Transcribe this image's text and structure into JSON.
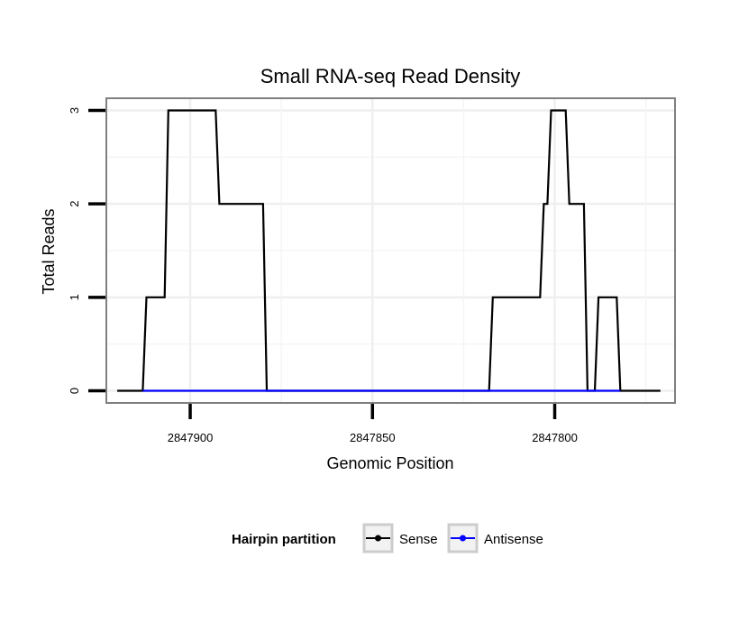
{
  "chart_data": {
    "type": "line",
    "title": "Small RNA-seq Read Density",
    "xlabel": "Genomic Position",
    "ylabel": "Total Reads",
    "xlim": [
      2847923,
      2847767
    ],
    "ylim": [
      -0.13,
      3.13
    ],
    "x_reversed": true,
    "grid": true,
    "xticks": [
      2847900,
      2847850,
      2847800
    ],
    "xtick_labels": [
      "2847900",
      "2847850",
      "2847800"
    ],
    "yticks": [
      0,
      1,
      2,
      3
    ],
    "ytick_labels": [
      "0",
      "1",
      "2",
      "3"
    ],
    "legend": {
      "title": "Hairpin partition",
      "position": "bottom",
      "entries": [
        "Sense",
        "Antisense"
      ]
    },
    "series": [
      {
        "name": "Sense",
        "color": "#000000",
        "x": [
          2847920,
          2847913,
          2847912,
          2847907,
          2847906,
          2847893,
          2847892,
          2847880,
          2847879,
          2847872,
          2847818,
          2847817,
          2847804,
          2847803,
          2847802,
          2847801,
          2847797,
          2847796,
          2847792,
          2847791,
          2847789,
          2847788,
          2847783,
          2847782,
          2847778,
          2847777,
          2847771
        ],
        "y": [
          0,
          0,
          1,
          1,
          3,
          3,
          2,
          2,
          0,
          0,
          0,
          1,
          1,
          2,
          2,
          3,
          3,
          2,
          2,
          0,
          0,
          1,
          1,
          0,
          0,
          0,
          0
        ]
      },
      {
        "name": "Antisense",
        "color": "#0000ff",
        "x": [
          2847913,
          2847879,
          2847818,
          2847791,
          2847788,
          2847782
        ],
        "y": [
          0,
          0,
          0,
          0,
          0,
          0
        ]
      }
    ]
  }
}
